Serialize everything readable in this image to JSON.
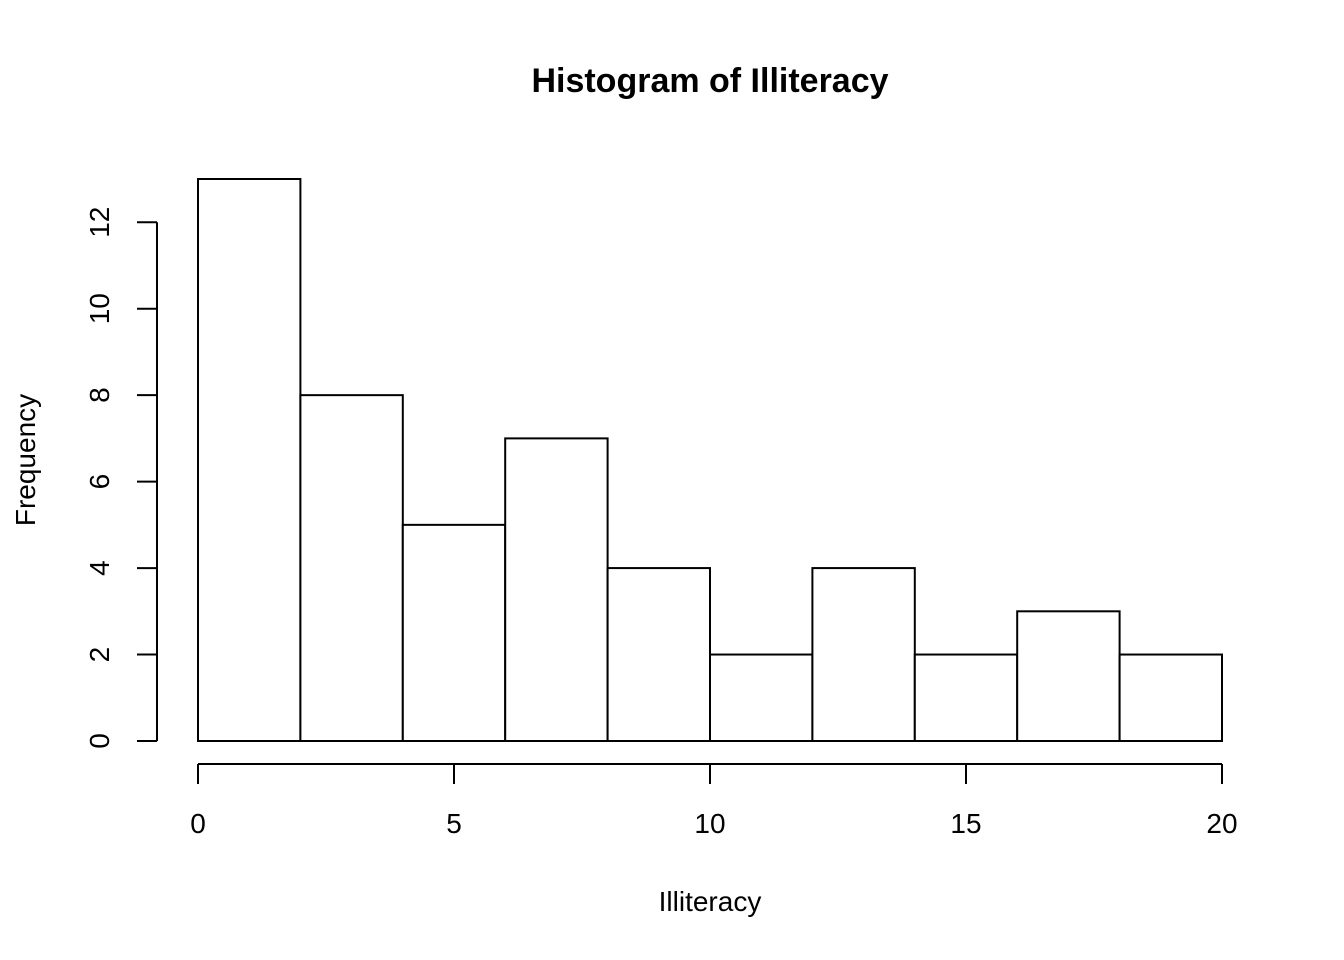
{
  "chart_data": {
    "type": "bar",
    "title": "Histogram of Illiteracy",
    "xlabel": "Illiteracy",
    "ylabel": "Frequency",
    "bins": [
      {
        "start": 0,
        "end": 2,
        "count": 13
      },
      {
        "start": 2,
        "end": 4,
        "count": 8
      },
      {
        "start": 4,
        "end": 6,
        "count": 5
      },
      {
        "start": 6,
        "end": 8,
        "count": 7
      },
      {
        "start": 8,
        "end": 10,
        "count": 4
      },
      {
        "start": 10,
        "end": 12,
        "count": 2
      },
      {
        "start": 12,
        "end": 14,
        "count": 4
      },
      {
        "start": 14,
        "end": 16,
        "count": 2
      },
      {
        "start": 16,
        "end": 18,
        "count": 3
      },
      {
        "start": 18,
        "end": 20,
        "count": 2
      }
    ],
    "xlim": [
      0,
      20
    ],
    "ylim": [
      0,
      13
    ],
    "x_ticks": [
      0,
      5,
      10,
      15,
      20
    ],
    "y_ticks": [
      0,
      2,
      4,
      6,
      8,
      10,
      12
    ],
    "grid": false,
    "bar_fill": "#ffffff",
    "bar_stroke": "#000000"
  }
}
